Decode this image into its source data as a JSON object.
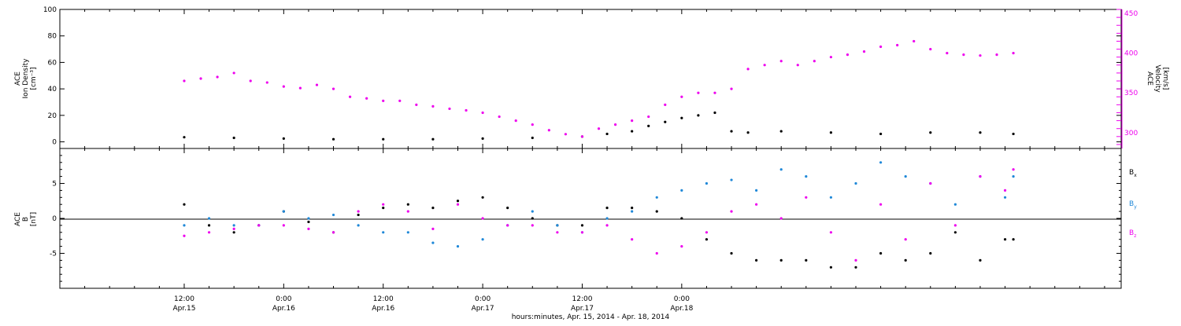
{
  "chart_data": [
    {
      "type": "scatter",
      "panel": "top",
      "ylabel_lines": [
        "ACE",
        "Ion Density",
        "[cm⁻³]"
      ],
      "y2label_lines": [
        "ACE",
        "Velocity",
        "[km/s]"
      ],
      "ylim": [
        -5,
        100
      ],
      "yticks": [
        0,
        20,
        40,
        60,
        80,
        100
      ],
      "y2lim": [
        280,
        455
      ],
      "y2ticks": [
        300,
        350,
        400,
        450
      ],
      "colors": {
        "density": "#000000",
        "velocity": "#ee00ee"
      },
      "series": [
        {
          "axis": "left",
          "x_hours": [
            0,
            6,
            12,
            18,
            24,
            30,
            36,
            42,
            48,
            51,
            54,
            56,
            58,
            60,
            62,
            64,
            66,
            68,
            72,
            78,
            84,
            90,
            96,
            100
          ],
          "values": [
            3.5,
            3,
            2.5,
            2,
            2,
            2,
            2.5,
            3,
            4,
            6,
            8,
            12,
            15,
            18,
            20,
            22,
            8,
            7,
            8,
            7,
            6,
            7,
            7,
            6
          ]
        },
        {
          "axis": "right",
          "x_hours": [
            0,
            2,
            4,
            6,
            8,
            10,
            12,
            14,
            16,
            18,
            20,
            22,
            24,
            26,
            28,
            30,
            32,
            34,
            36,
            38,
            40,
            42,
            44,
            46,
            48,
            50,
            52,
            54,
            56,
            58,
            60,
            62,
            64,
            66,
            68,
            70,
            72,
            74,
            76,
            78,
            80,
            82,
            84,
            86,
            88,
            90,
            92,
            94,
            96,
            98,
            100
          ],
          "values": [
            365,
            368,
            370,
            375,
            365,
            363,
            358,
            356,
            360,
            355,
            345,
            343,
            340,
            340,
            335,
            333,
            330,
            328,
            325,
            320,
            315,
            310,
            303,
            298,
            295,
            305,
            310,
            315,
            320,
            335,
            345,
            350,
            350,
            355,
            380,
            385,
            390,
            385,
            390,
            395,
            398,
            402,
            408,
            410,
            415,
            405,
            400,
            398,
            397,
            398,
            400
          ]
        }
      ]
    },
    {
      "type": "scatter",
      "panel": "bottom",
      "ylabel_lines": [
        "ACE",
        "B",
        "[nT]"
      ],
      "ylim": [
        -10,
        10
      ],
      "yticks": [
        -5,
        0,
        5
      ],
      "legend": [
        "Bx",
        "By",
        "Bz"
      ],
      "series": [
        {
          "name": "Bx",
          "color": "#000000",
          "x_hours": [
            0,
            3,
            6,
            9,
            12,
            15,
            18,
            21,
            24,
            27,
            30,
            33,
            36,
            39,
            42,
            45,
            48,
            51,
            54,
            57,
            60,
            63,
            66,
            69,
            72,
            75,
            78,
            81,
            84,
            87,
            90,
            93,
            96,
            99,
            100
          ],
          "values": [
            2,
            -1,
            -2,
            -1,
            1,
            -0.5,
            -2,
            0.5,
            1.5,
            2,
            1.5,
            2.5,
            3,
            1.5,
            0,
            -1,
            -1,
            1.5,
            1.5,
            1,
            0,
            -3,
            -5,
            -6,
            -6,
            -6,
            -7,
            -7,
            -5,
            -6,
            -5,
            -2,
            -6,
            -3,
            -3
          ]
        },
        {
          "name": "By",
          "color": "#1f88d8",
          "x_hours": [
            0,
            3,
            6,
            9,
            12,
            15,
            18,
            21,
            24,
            27,
            30,
            33,
            36,
            39,
            42,
            45,
            48,
            51,
            54,
            57,
            60,
            63,
            66,
            69,
            72,
            75,
            78,
            81,
            84,
            87,
            90,
            93,
            96,
            99,
            100
          ],
          "values": [
            -1,
            0,
            -1,
            -1,
            1,
            0,
            0.5,
            -1,
            -2,
            -2,
            -3.5,
            -4,
            -3,
            -1,
            1,
            -1,
            -2,
            0,
            1,
            3,
            4,
            5,
            5.5,
            4,
            7,
            6,
            3,
            5,
            8,
            6,
            5,
            2,
            6,
            3,
            6
          ]
        },
        {
          "name": "Bz",
          "color": "#ee00ee",
          "x_hours": [
            0,
            3,
            6,
            9,
            12,
            15,
            18,
            21,
            24,
            27,
            30,
            33,
            36,
            39,
            42,
            45,
            48,
            51,
            54,
            57,
            60,
            63,
            66,
            69,
            72,
            75,
            78,
            81,
            84,
            87,
            90,
            93,
            96,
            99,
            100
          ],
          "values": [
            -2.5,
            -2,
            -1.5,
            -1,
            -1,
            -1.5,
            -2,
            1,
            2,
            1,
            -1.5,
            2,
            0,
            -1,
            -1,
            -2,
            -2,
            -1,
            -3,
            -5,
            -4,
            -2,
            1,
            2,
            0,
            3,
            -2,
            -6,
            2,
            -3,
            5,
            -1,
            6,
            4,
            7
          ]
        }
      ]
    },
    {
      "type": "axis",
      "xlabel": "hours:minutes, Apr. 15, 2014 - Apr. 18, 2014",
      "xlim_hours": [
        -15,
        113
      ],
      "xticks": [
        {
          "h": 0,
          "time": "12:00",
          "date": "Apr.15"
        },
        {
          "h": 12,
          "time": "0:00",
          "date": "Apr.16"
        },
        {
          "h": 24,
          "time": "12:00",
          "date": "Apr.16"
        },
        {
          "h": 36,
          "time": "0:00",
          "date": "Apr.17"
        },
        {
          "h": 48,
          "time": "12:00",
          "date": "Apr.17"
        },
        {
          "h": 60,
          "time": "0:00",
          "date": "Apr.18"
        }
      ]
    }
  ]
}
